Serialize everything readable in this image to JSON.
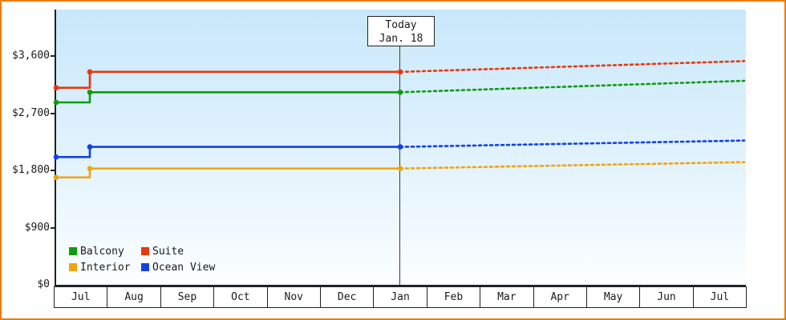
{
  "page": {
    "border_color": "#f07c00",
    "background": "#ffffff"
  },
  "chart_data": {
    "type": "line",
    "title": "",
    "today_marker": {
      "line1": "Today",
      "line2": "Jan. 18",
      "month_label": "Jan"
    },
    "x_axis": {
      "labels": [
        "Jul",
        "Aug",
        "Sep",
        "Oct",
        "Nov",
        "Dec",
        "Jan",
        "Feb",
        "Mar",
        "Apr",
        "May",
        "Jun",
        "Jul"
      ]
    },
    "y_axis": {
      "tick_labels": [
        "$0",
        "$900",
        "$1,800",
        "$2,700",
        "$3,600"
      ],
      "tick_values": [
        0,
        900,
        1800,
        2700,
        3600
      ],
      "max_value": 3600
    },
    "series": [
      {
        "name": "Balcony",
        "color": "#0e9c0e",
        "start_value": 2870,
        "stepped_value": 3030,
        "forecast_end_value": 3210
      },
      {
        "name": "Suite",
        "color": "#e8380d",
        "start_value": 3100,
        "stepped_value": 3350,
        "forecast_end_value": 3520
      },
      {
        "name": "Interior",
        "color": "#efa511",
        "start_value": 1690,
        "stepped_value": 1830,
        "forecast_end_value": 1930
      },
      {
        "name": "Ocean View",
        "color": "#1540e8",
        "start_value": 2010,
        "stepped_value": 2170,
        "forecast_end_value": 2270
      }
    ],
    "layout_hints": {
      "solid_until_month": "Jan",
      "dotted_after_today": true,
      "grid": "off",
      "legend_position": "bottom-left",
      "step_between": [
        "Jul",
        "Aug"
      ]
    }
  }
}
